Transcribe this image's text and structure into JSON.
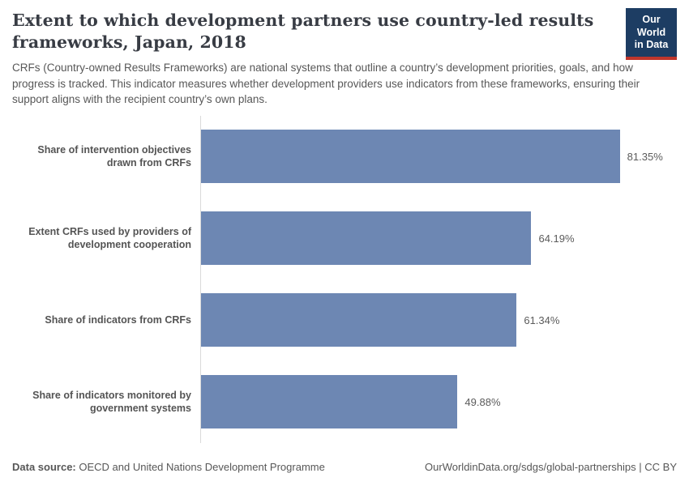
{
  "header": {
    "title": "Extent to which development partners use country-led results frameworks, Japan, 2018",
    "subtitle": "CRFs (Country-owned Results Frameworks) are national systems that outline a country’s development priorities, goals, and how progress is tracked. This indicator measures whether development providers use indicators from these frameworks, ensuring their support aligns with the recipient country’s own plans.",
    "logo": {
      "line1": "Our World",
      "line2": "in Data",
      "bg_color": "#1d3d63",
      "accent_color": "#c0362c"
    }
  },
  "chart_data": {
    "type": "bar",
    "orientation": "horizontal",
    "title": "Extent to which development partners use country-led results frameworks, Japan, 2018",
    "categories": [
      "Share of intervention objectives drawn from CRFs",
      "Extent CRFs used by providers of development cooperation",
      "Share of indicators from CRFs",
      "Share of indicators monitored by government systems"
    ],
    "values": [
      81.35,
      64.19,
      61.34,
      49.88
    ],
    "value_labels": [
      "81.35%",
      "64.19%",
      "61.34%",
      "49.88%"
    ],
    "unit": "%",
    "bar_color": "#6d87b3",
    "axis_color": "#dadada",
    "xlim": [
      0,
      92.4
    ],
    "grid": false,
    "legend": "none"
  },
  "footer": {
    "data_source_label": "Data source:",
    "data_source_value": " OECD and United Nations Development Programme",
    "credit": "OurWorldinData.org/sdgs/global-partnerships | CC BY"
  }
}
